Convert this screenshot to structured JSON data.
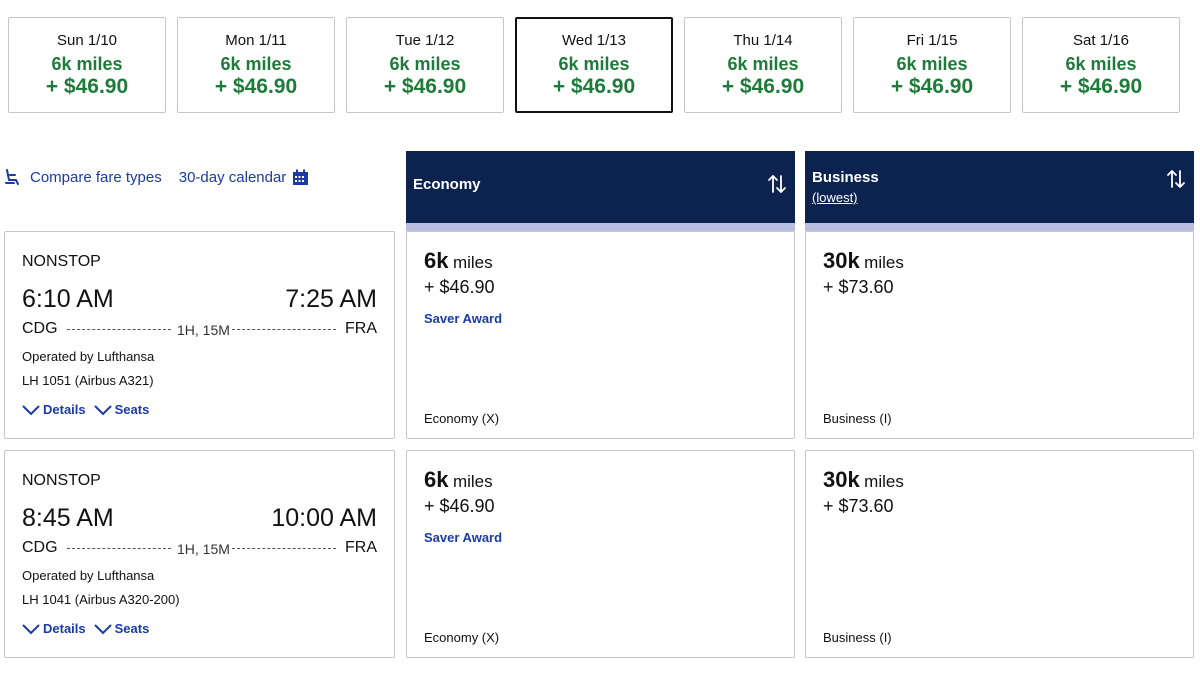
{
  "dates": [
    {
      "label": "Sun 1/10",
      "miles": "6k miles",
      "price": "+ $46.90",
      "selected": false
    },
    {
      "label": "Mon 1/11",
      "miles": "6k miles",
      "price": "+ $46.90",
      "selected": false
    },
    {
      "label": "Tue 1/12",
      "miles": "6k miles",
      "price": "+ $46.90",
      "selected": false
    },
    {
      "label": "Wed 1/13",
      "miles": "6k miles",
      "price": "+ $46.90",
      "selected": true
    },
    {
      "label": "Thu 1/14",
      "miles": "6k miles",
      "price": "+ $46.90",
      "selected": false
    },
    {
      "label": "Fri 1/15",
      "miles": "6k miles",
      "price": "+ $46.90",
      "selected": false
    },
    {
      "label": "Sat 1/16",
      "miles": "6k miles",
      "price": "+ $46.90",
      "selected": false
    }
  ],
  "links": {
    "compare": "Compare fare types",
    "calendar": "30-day calendar"
  },
  "cabins": {
    "economy": {
      "title": "Economy"
    },
    "business": {
      "title": "Business",
      "sub": "(lowest)"
    }
  },
  "flights": [
    {
      "stops": "NONSTOP",
      "depart": "6:10 AM",
      "arrive": "7:25 AM",
      "origin": "CDG",
      "destination": "FRA",
      "duration": "1H, 15M",
      "operated": "Operated by Lufthansa",
      "flight_no": "LH 1051 (Airbus A321)",
      "details": "Details",
      "seats": "Seats",
      "economy": {
        "miles": "6k",
        "unit": "miles",
        "tax": "+ $46.90",
        "award": "Saver Award",
        "class": "Economy (X)"
      },
      "business": {
        "miles": "30k",
        "unit": "miles",
        "tax": "+ $73.60",
        "class": "Business (I)"
      }
    },
    {
      "stops": "NONSTOP",
      "depart": "8:45 AM",
      "arrive": "10:00 AM",
      "origin": "CDG",
      "destination": "FRA",
      "duration": "1H, 15M",
      "operated": "Operated by Lufthansa",
      "flight_no": "LH 1041 (Airbus A320-200)",
      "details": "Details",
      "seats": "Seats",
      "economy": {
        "miles": "6k",
        "unit": "miles",
        "tax": "+ $46.90",
        "award": "Saver Award",
        "class": "Economy (X)"
      },
      "business": {
        "miles": "30k",
        "unit": "miles",
        "tax": "+ $73.60",
        "class": "Business (I)"
      }
    }
  ],
  "colors": {
    "navy": "#0c2350",
    "green": "#1e7b3a",
    "link": "#1a3aa8",
    "header_band": "#b9bde0"
  },
  "icons": {
    "compare": "seat-icon",
    "calendar": "calendar-icon",
    "sort": "sort-arrows-icon",
    "expand": "chevron-down-icon"
  }
}
